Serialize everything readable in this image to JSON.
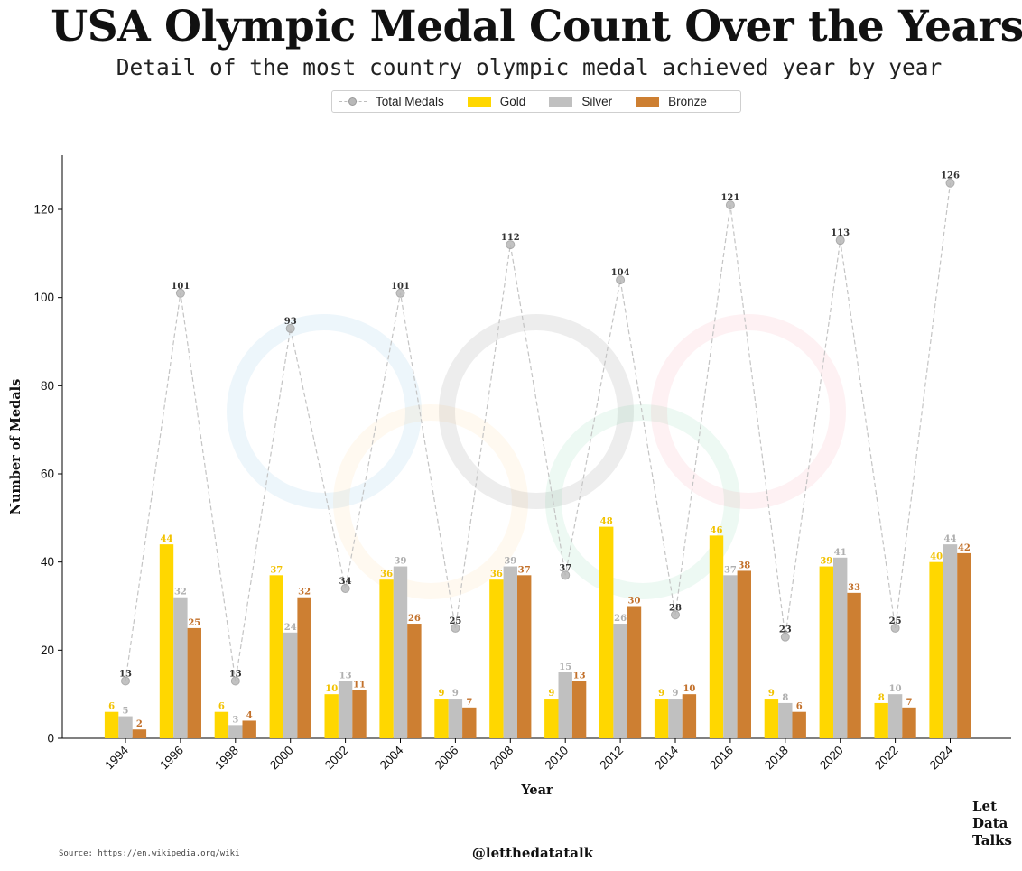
{
  "title": "USA Olympic Medal Count Over the Years",
  "subtitle": "Detail of the most country olympic medal achieved year by year",
  "source": "Source: https://en.wikipedia.org/wiki",
  "handle": "@letthedatatalk",
  "brand": [
    "Let",
    "Data",
    "Talks"
  ],
  "legend": [
    "Total Medals",
    "Gold",
    "Silver",
    "Bronze"
  ],
  "colors": {
    "gold": "#FFD700",
    "silver": "#C0C0C0",
    "bronze": "#CD7F32",
    "total": "#b8b8b8",
    "rings": [
      "#0081C8",
      "#FCB131",
      "#000000",
      "#00A651",
      "#EE334E"
    ]
  },
  "chart_data": {
    "type": "bar",
    "xlabel": "Year",
    "ylabel": "Number of Medals",
    "ylim": [
      0,
      132
    ],
    "yticks": [
      0,
      20,
      40,
      60,
      80,
      100,
      120
    ],
    "categories": [
      "1994",
      "1996",
      "1998",
      "2000",
      "2002",
      "2004",
      "2006",
      "2008",
      "2010",
      "2012",
      "2014",
      "2016",
      "2018",
      "2020",
      "2022",
      "2024"
    ],
    "series": [
      {
        "name": "Gold",
        "values": [
          6,
          44,
          6,
          37,
          10,
          36,
          9,
          36,
          9,
          48,
          9,
          46,
          9,
          39,
          8,
          40
        ]
      },
      {
        "name": "Silver",
        "values": [
          5,
          32,
          3,
          24,
          13,
          39,
          9,
          39,
          15,
          26,
          9,
          37,
          8,
          41,
          10,
          44
        ]
      },
      {
        "name": "Bronze",
        "values": [
          2,
          25,
          4,
          32,
          11,
          26,
          7,
          37,
          13,
          30,
          10,
          38,
          6,
          33,
          7,
          42
        ]
      },
      {
        "name": "Total Medals",
        "type": "line",
        "values": [
          13,
          101,
          13,
          93,
          34,
          101,
          25,
          112,
          37,
          104,
          28,
          121,
          23,
          113,
          25,
          126
        ]
      }
    ],
    "legend_position": "top-center"
  }
}
